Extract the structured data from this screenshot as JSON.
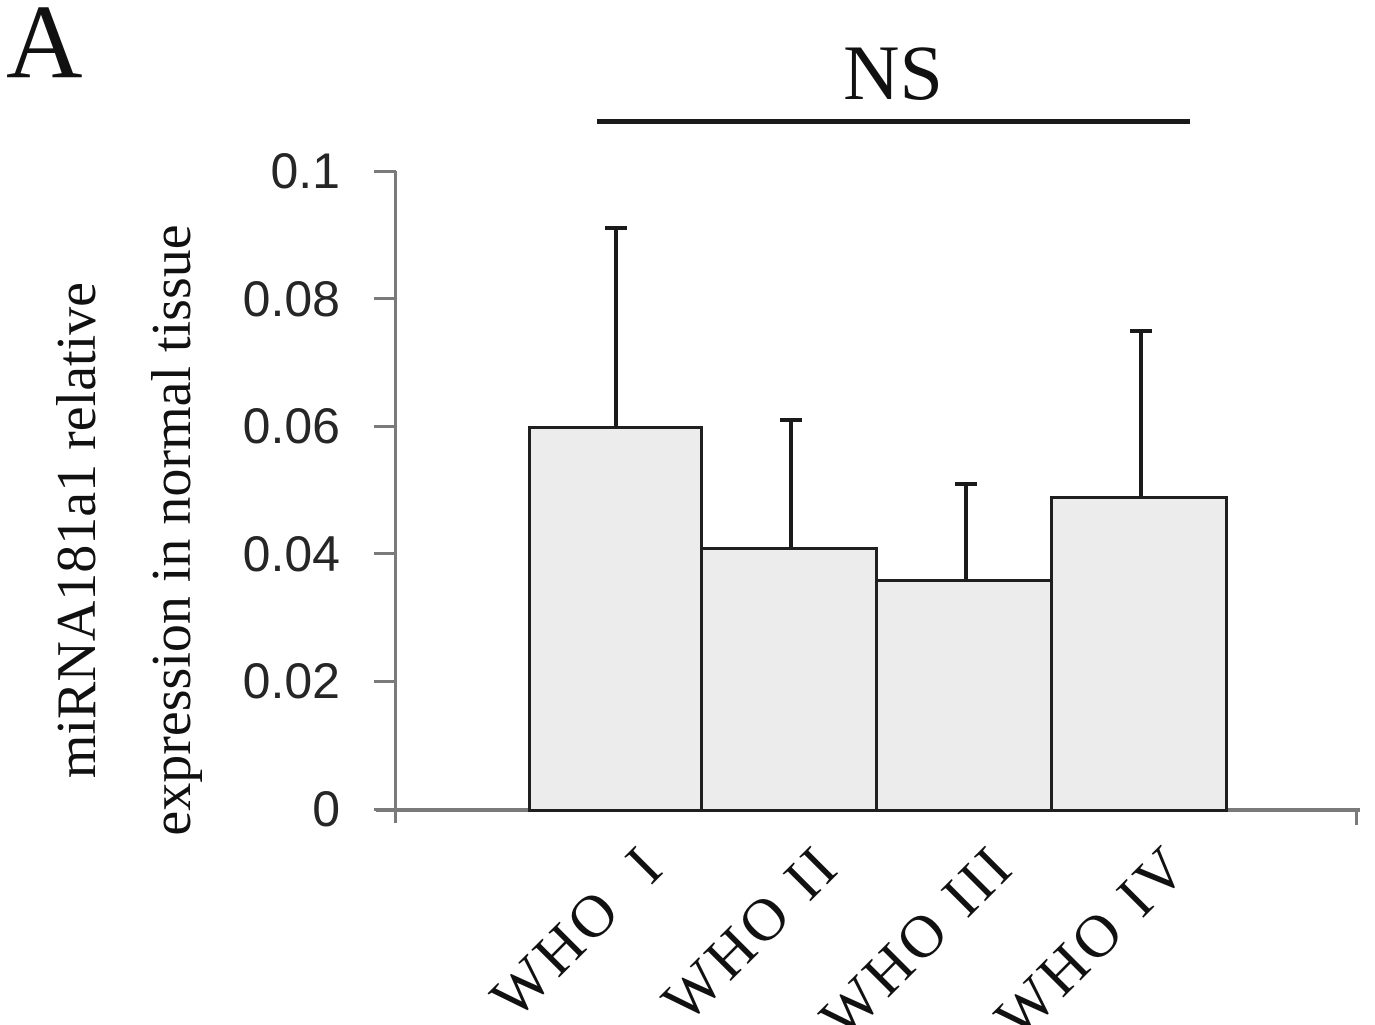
{
  "panel_label": "A",
  "annotation": {
    "label": "NS"
  },
  "y_axis": {
    "label_line1": "miRNA181a1 relative",
    "label_line2": "expression in normal tissue"
  },
  "chart_data": {
    "type": "bar",
    "title": "",
    "xlabel": "",
    "ylabel": "miRNA181a1 relative expression in normal tissue",
    "ylim": [
      0,
      0.1
    ],
    "grid": false,
    "legend": false,
    "categories": [
      "WHO  I",
      "WHO II",
      "WHO III",
      "WHO IV"
    ],
    "values": [
      0.06,
      0.041,
      0.036,
      0.049
    ],
    "error_plus": [
      0.031,
      0.02,
      0.015,
      0.026
    ],
    "yticks": [
      {
        "value": 0.1,
        "label": "0.1"
      },
      {
        "value": 0.08,
        "label": "0.08"
      },
      {
        "value": 0.06,
        "label": "0.06"
      },
      {
        "value": 0.04,
        "label": "0.04"
      },
      {
        "value": 0.02,
        "label": "0.02"
      },
      {
        "value": 0,
        "label": "0"
      }
    ],
    "annotation_label": "NS",
    "colors": {
      "bar_fill": "#ececec",
      "bar_border": "#1f1f1f",
      "axis": "#7a7a7a",
      "error_bar": "#1a1a1a",
      "text": "#111111"
    }
  }
}
